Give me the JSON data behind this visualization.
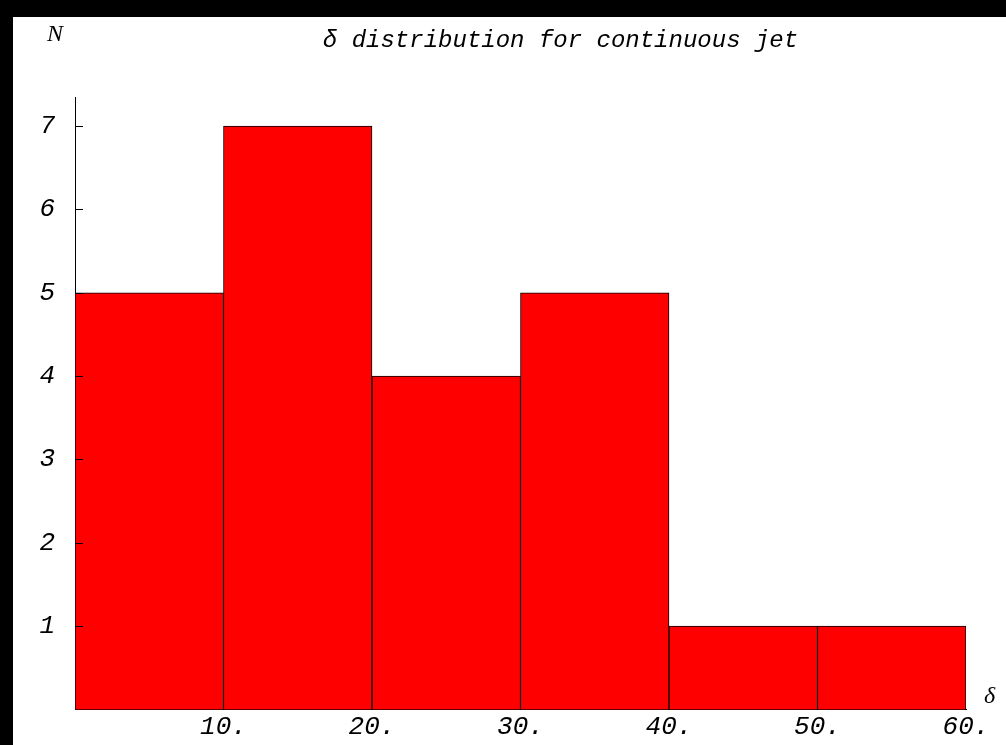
{
  "chart_data": {
    "type": "histogram",
    "title": "δ distribution for continuous jet",
    "xlabel": "δ",
    "ylabel": "N",
    "bins": [
      0,
      10,
      20,
      30,
      40,
      50,
      60
    ],
    "values": [
      5,
      7,
      4,
      5,
      1,
      1
    ],
    "color": "#ff0000",
    "xlim": [
      0,
      60
    ],
    "xticks": [
      {
        "value": 10,
        "label": "10."
      },
      {
        "value": 20,
        "label": "20."
      },
      {
        "value": 30,
        "label": "30."
      },
      {
        "value": 40,
        "label": "40."
      },
      {
        "value": 50,
        "label": "50."
      },
      {
        "value": 60,
        "label": "60."
      }
    ],
    "ylim": [
      0,
      7.35
    ],
    "yticks": [
      1,
      2,
      3,
      4,
      5,
      6,
      7
    ],
    "grid": false,
    "legend": false
  }
}
